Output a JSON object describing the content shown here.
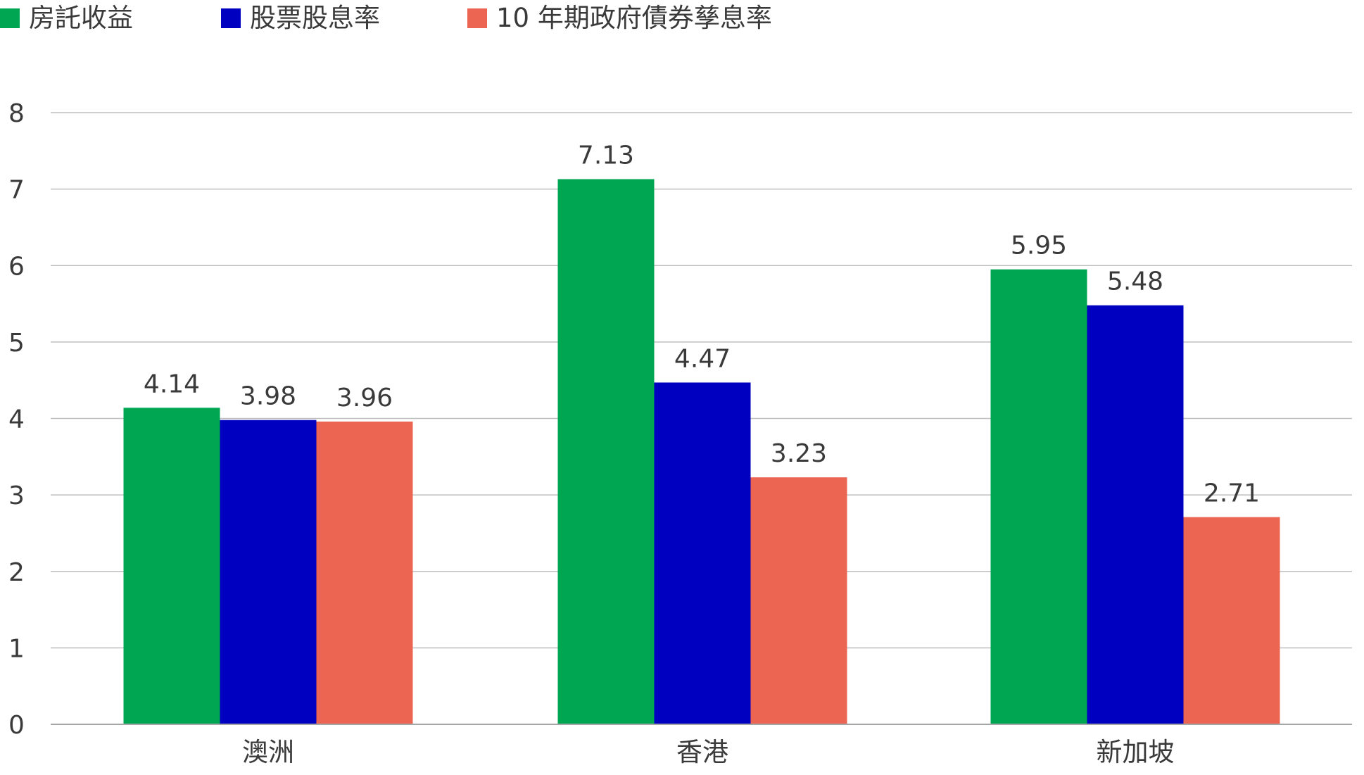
{
  "chart_data": {
    "type": "bar",
    "categories": [
      "澳洲",
      "香港",
      "新加坡"
    ],
    "series": [
      {
        "name": "房託收益",
        "values": [
          4.14,
          7.13,
          5.95
        ],
        "color": "#00a651"
      },
      {
        "name": "股票股息率",
        "values": [
          3.98,
          4.47,
          5.48
        ],
        "color": "#0000c0"
      },
      {
        "name": "10 年期政府債券孳息率",
        "values": [
          3.96,
          3.23,
          2.71
        ],
        "color": "#ec6553"
      }
    ],
    "data_labels": [
      [
        "4.14",
        "7.13",
        "5.95"
      ],
      [
        "3.98",
        "4.47",
        "5.48"
      ],
      [
        "3.96",
        "3.23",
        "2.71"
      ]
    ],
    "ylim": [
      0,
      8
    ],
    "yticks": [
      "0",
      "1",
      "2",
      "3",
      "4",
      "5",
      "6",
      "7",
      "8"
    ],
    "grid": true,
    "legend_position": "top-left",
    "gridline_color": "#bfbfbf",
    "axis_line_color": "#a6a6a6"
  }
}
